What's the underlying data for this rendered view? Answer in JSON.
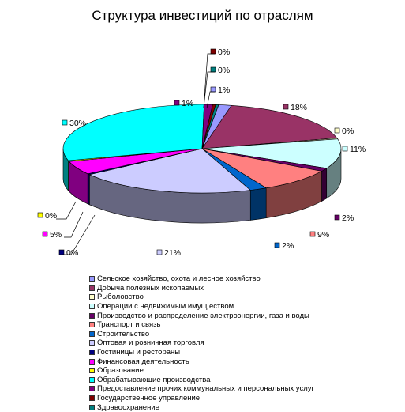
{
  "chart_data": {
    "type": "pie",
    "title": "Структура инвестиций по отраслям",
    "series": [
      {
        "name": "Сельское хозяйство, охота и лесное хозяйство",
        "value": 1,
        "label": "1%",
        "color": "#9999FF"
      },
      {
        "name": "Добыча полезных ископаемых",
        "value": 18,
        "label": "18%",
        "color": "#993366"
      },
      {
        "name": "Рыболовство",
        "value": 0,
        "label": "0%",
        "color": "#FFFFCC"
      },
      {
        "name": "Операции с недвижимым имущ еством",
        "value": 11,
        "label": "11%",
        "color": "#CCFFFF"
      },
      {
        "name": "Производство и распределение электроэнергии, газа и воды",
        "value": 2,
        "label": "2%",
        "color": "#660066"
      },
      {
        "name": "Транспорт и связь",
        "value": 9,
        "label": "9%",
        "color": "#FF8080"
      },
      {
        "name": "Строительство",
        "value": 2,
        "label": "2%",
        "color": "#0066CC"
      },
      {
        "name": "Оптовая и розничная торговля",
        "value": 21,
        "label": "21%",
        "color": "#CCCCFF"
      },
      {
        "name": "Гостиницы и рестораны",
        "value": 0,
        "label": "0%",
        "color": "#000080"
      },
      {
        "name": "Финансовая деятельность",
        "value": 5,
        "label": "5%",
        "color": "#FF00FF"
      },
      {
        "name": "Образование",
        "value": 0,
        "label": "0%",
        "color": "#FFFF00"
      },
      {
        "name": "Обрабатывающие производства",
        "value": 30,
        "label": "30%",
        "color": "#00FFFF"
      },
      {
        "name": "Предоставление прочих коммунальных и персональных услуг",
        "value": 1,
        "label": "1%",
        "color": "#800080"
      },
      {
        "name": "Государственное управление",
        "value": 0,
        "label": "0%",
        "color": "#800000"
      },
      {
        "name": "Здравоохранение",
        "value": 0,
        "label": "0%",
        "color": "#008080"
      }
    ],
    "legend_position": "bottom"
  }
}
